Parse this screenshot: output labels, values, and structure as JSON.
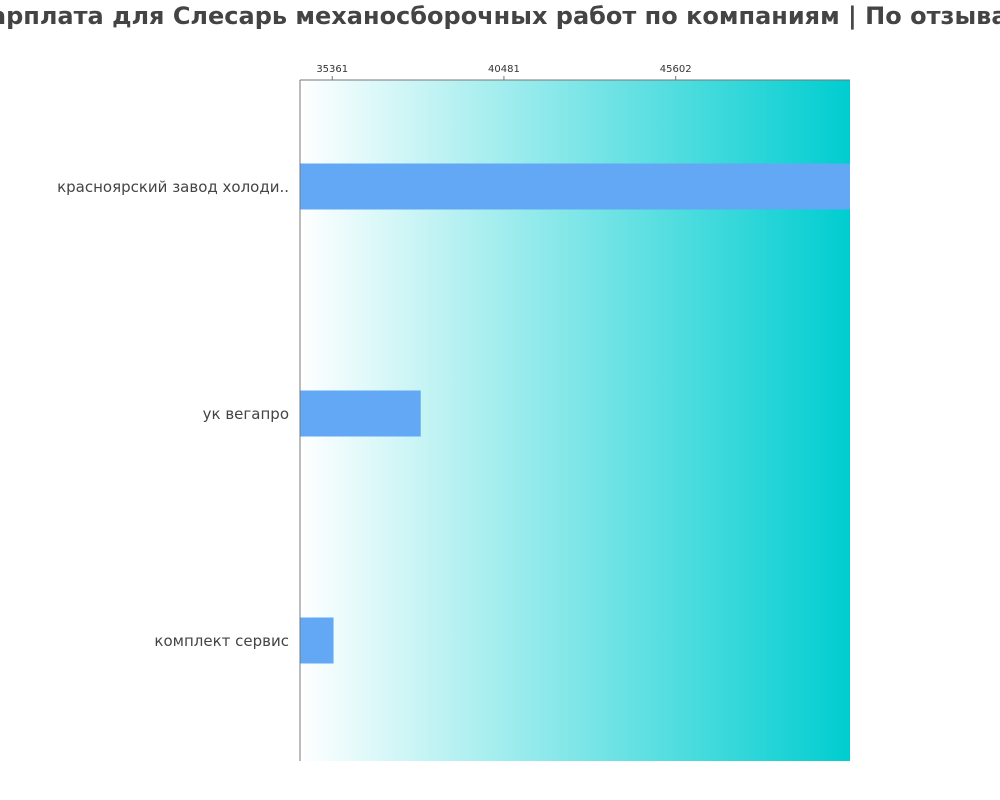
{
  "chart_data": {
    "type": "bar",
    "orientation": "horizontal",
    "title": "Зарплата для Слесарь механосборочных работ по компаниям  | По отзывам",
    "categories": [
      "красноярский завод холоди..",
      "ук вегапро",
      "комплект сервис"
    ],
    "values": [
      51720,
      38000,
      35400
    ],
    "xlim": [
      34400,
      50800
    ],
    "x_ticks": [
      35361,
      40481,
      45602
    ],
    "tick_labels": [
      "35361",
      "40481",
      "45602"
    ],
    "xlabel": "",
    "ylabel": "",
    "grid": false,
    "legend": "none",
    "colors": {
      "bar": "#63a8f4",
      "background_start": "#ffffff",
      "background_end": "#00cdd0",
      "axis": "#777777"
    }
  }
}
